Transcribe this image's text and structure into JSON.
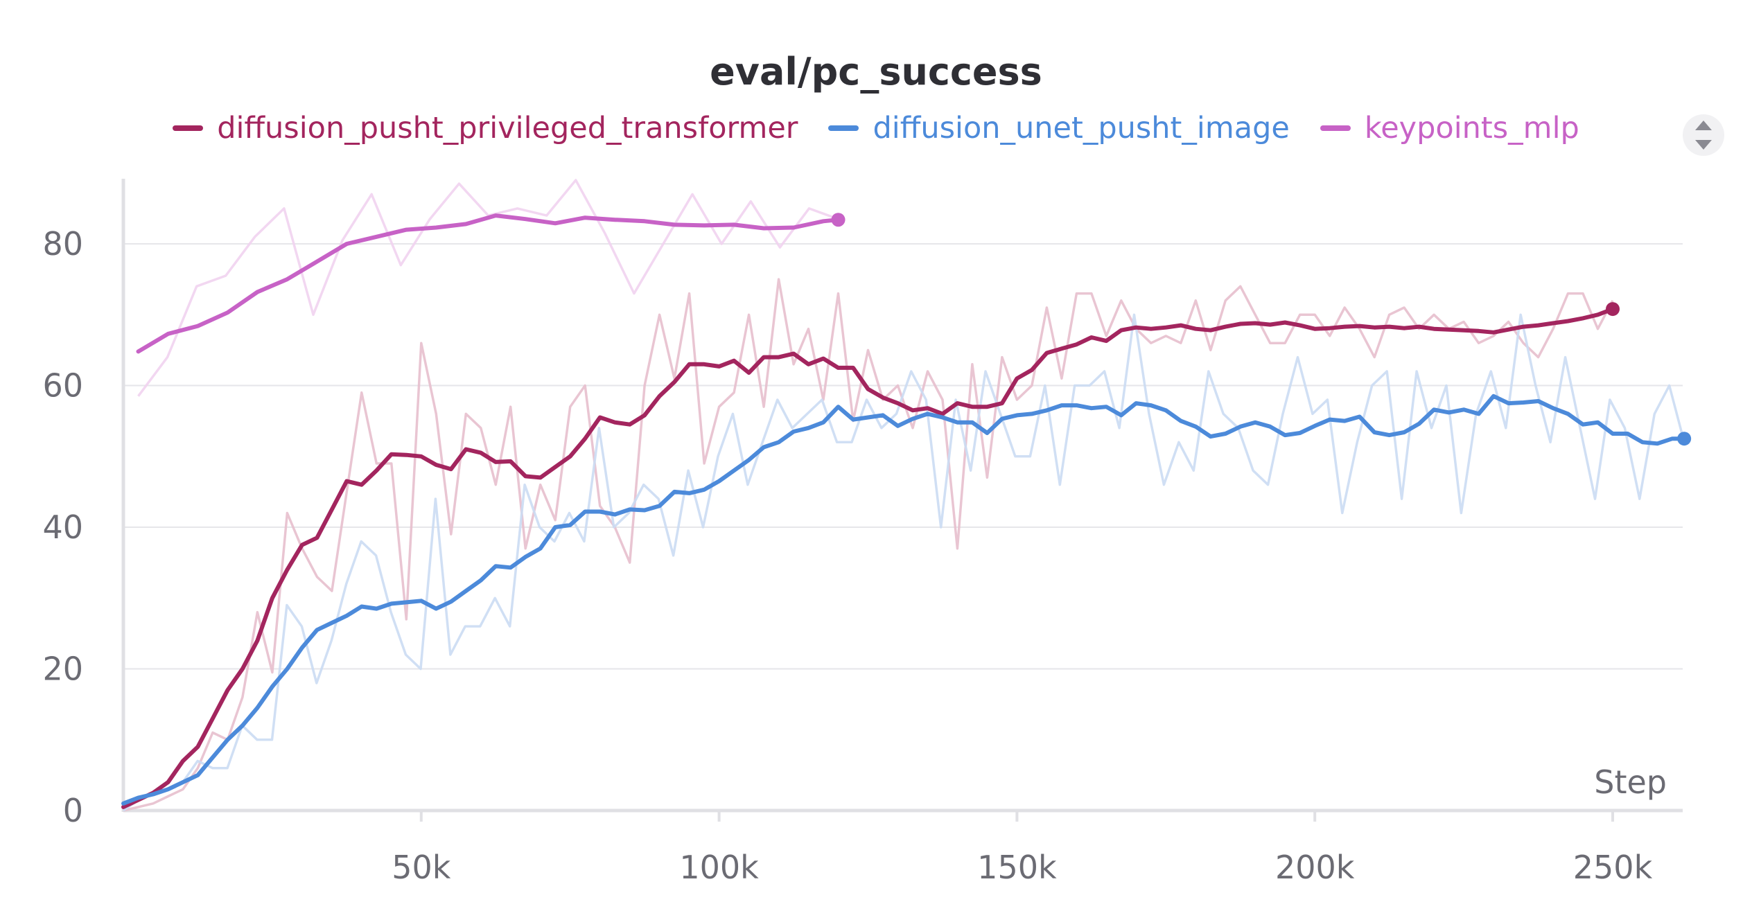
{
  "chart_data": {
    "type": "line",
    "title": "eval/pc_success",
    "xlabel": "Step",
    "ylabel": "",
    "xlim": [
      0,
      262000
    ],
    "ylim": [
      0,
      90
    ],
    "x_ticks": [
      50000,
      100000,
      150000,
      200000,
      250000
    ],
    "x_tick_labels": [
      "50k",
      "100k",
      "150k",
      "200k",
      "250k"
    ],
    "y_ticks": [
      0,
      20,
      40,
      60,
      80
    ],
    "y_tick_labels": [
      "0",
      "20",
      "40",
      "60",
      "80"
    ],
    "grid": true,
    "legend_position": "top-center",
    "series": [
      {
        "name": "diffusion_pusht_privileged_transformer",
        "color": "#a3255e",
        "raw_color": "#e7bfcd",
        "x": [
          0,
          2500,
          5000,
          7500,
          10000,
          12500,
          15000,
          17500,
          20000,
          22500,
          25000,
          27500,
          30000,
          32500,
          35000,
          37500,
          40000,
          42500,
          45000,
          47500,
          50000,
          52500,
          55000,
          57500,
          60000,
          62500,
          65000,
          67500,
          70000,
          72500,
          75000,
          77500,
          80000,
          82500,
          85000,
          87500,
          90000,
          92500,
          95000,
          97500,
          100000,
          102500,
          105000,
          107500,
          110000,
          112500,
          115000,
          117500,
          120000,
          122500,
          125000,
          127500,
          130000,
          132500,
          135000,
          137500,
          140000,
          142500,
          145000,
          147500,
          150000,
          152500,
          155000,
          157500,
          160000,
          162500,
          165000,
          167500,
          170000,
          172500,
          175000,
          177500,
          180000,
          182500,
          185000,
          187500,
          190000,
          192500,
          195000,
          197500,
          200000,
          202500,
          205000,
          207500,
          210000,
          212500,
          215000,
          217500,
          220000,
          222500,
          225000,
          227500,
          230000,
          232500,
          235000,
          237500,
          240000,
          242500,
          245000,
          247500,
          250000
        ],
        "values": [
          0.5,
          1.5,
          2.5,
          4,
          7,
          9,
          13,
          17,
          20,
          24,
          30,
          34,
          37.5,
          38.5,
          42.5,
          46.5,
          46,
          48,
          50.3,
          50.2,
          50,
          48.8,
          48.2,
          51,
          50.5,
          49.2,
          49.3,
          47.2,
          47,
          48.5,
          50,
          52.5,
          55.5,
          54.8,
          54.5,
          55.8,
          58.5,
          60.5,
          63,
          63,
          62.7,
          63.5,
          61.8,
          64,
          64,
          64.5,
          63,
          63.8,
          62.5,
          62.5,
          59.5,
          58.3,
          57.5,
          56.5,
          56.8,
          56,
          57.5,
          57,
          57,
          57.5,
          61,
          62.2,
          64.6,
          65.2,
          65.8,
          66.8,
          66.3,
          67.8,
          68.2,
          68.0,
          68.2,
          68.5,
          68.0,
          67.8,
          68.3,
          68.7,
          68.8,
          68.6,
          68.9,
          68.5,
          68.0,
          68.1,
          68.3,
          68.4,
          68.2,
          68.3,
          68.1,
          68.3,
          68.0,
          67.9,
          67.8,
          67.7,
          67.5,
          67.9,
          68.3,
          68.5,
          68.8,
          69.1,
          69.5,
          70,
          70.8
        ],
        "raw_values": [
          0,
          0.5,
          1,
          2,
          3,
          6,
          11,
          10,
          16,
          28,
          19.5,
          42,
          37,
          33,
          31,
          45,
          59,
          49,
          49,
          27,
          66,
          56,
          39,
          56,
          54,
          46,
          57,
          37,
          46,
          41,
          57,
          60,
          43,
          40,
          35,
          60,
          70,
          61,
          73,
          49,
          57,
          59,
          70,
          57,
          75,
          63,
          68,
          58,
          73,
          55,
          65,
          58,
          60,
          54,
          62,
          58,
          37,
          63,
          47,
          64,
          58,
          60,
          71,
          61,
          73,
          73,
          67,
          72,
          68,
          66,
          67,
          66,
          72,
          65,
          72,
          74,
          70,
          66,
          66,
          70,
          70,
          67,
          71,
          68,
          64,
          70,
          71,
          68,
          70,
          68,
          69,
          66,
          67,
          69,
          66,
          64,
          68,
          73,
          73,
          68,
          72
        ]
      },
      {
        "name": "diffusion_unet_pusht_image",
        "color": "#4c8ada",
        "raw_color": "#cbdcf3",
        "x": [
          0,
          2500,
          5000,
          7500,
          10000,
          12500,
          15000,
          17500,
          20000,
          22500,
          25000,
          27500,
          30000,
          32500,
          35000,
          37500,
          40000,
          42500,
          45000,
          47500,
          50000,
          52500,
          55000,
          57500,
          60000,
          62500,
          65000,
          67500,
          70000,
          72500,
          75000,
          77500,
          80000,
          82500,
          85000,
          87500,
          90000,
          92500,
          95000,
          97500,
          100000,
          102500,
          105000,
          107500,
          110000,
          112500,
          115000,
          117500,
          120000,
          122500,
          125000,
          127500,
          130000,
          132500,
          135000,
          137500,
          140000,
          142500,
          145000,
          147500,
          150000,
          152500,
          155000,
          157500,
          160000,
          162500,
          165000,
          167500,
          170000,
          172500,
          175000,
          177500,
          180000,
          182500,
          185000,
          187500,
          190000,
          192500,
          195000,
          197500,
          200000,
          202500,
          205000,
          207500,
          210000,
          212500,
          215000,
          217500,
          220000,
          222500,
          225000,
          227500,
          230000,
          232500,
          235000,
          237500,
          240000,
          242500,
          245000,
          247500,
          250000,
          252500,
          255000,
          257500,
          260000,
          262000
        ],
        "values": [
          1,
          1.8,
          2.3,
          3,
          4,
          5,
          7.5,
          10,
          12,
          14.5,
          17.5,
          20,
          23,
          25.5,
          26.5,
          27.5,
          28.8,
          28.5,
          29.2,
          29.4,
          29.6,
          28.5,
          29.5,
          31,
          32.5,
          34.5,
          34.3,
          35.8,
          37,
          40,
          40.3,
          42.2,
          42.2,
          41.8,
          42.5,
          42.4,
          43,
          45,
          44.8,
          45.3,
          46.5,
          48,
          49.5,
          51.3,
          52,
          53.5,
          54,
          54.8,
          57,
          55.2,
          55.5,
          55.8,
          54.3,
          55.3,
          56,
          55.5,
          54.8,
          54.8,
          53.3,
          55.3,
          55.8,
          56,
          56.5,
          57.2,
          57.2,
          56.8,
          57,
          55.8,
          57.5,
          57.2,
          56.5,
          55,
          54.2,
          52.8,
          53.2,
          54.2,
          54.8,
          54.2,
          53,
          53.3,
          54.3,
          55.2,
          55,
          55.6,
          53.4,
          53,
          53.4,
          54.6,
          56.6,
          56.2,
          56.6,
          56,
          58.5,
          57.5,
          57.6,
          57.8,
          56.8,
          56,
          54.5,
          54.8,
          53.2,
          53.2,
          52,
          51.8,
          52.5,
          52.5
        ],
        "raw_values": [
          0,
          1.5,
          2.5,
          3,
          4,
          7,
          6,
          6,
          12,
          10,
          10,
          29,
          26,
          18,
          24,
          32,
          38,
          36,
          28,
          22,
          20,
          44,
          22,
          26,
          26,
          30,
          26,
          46,
          40,
          38,
          42,
          38,
          54,
          40,
          42,
          46,
          44,
          36,
          48,
          40,
          50,
          56,
          46,
          52,
          58,
          54,
          56,
          58,
          52,
          52,
          58,
          54,
          56,
          62,
          58,
          40,
          58,
          48,
          62,
          56,
          50,
          50,
          60,
          46,
          60,
          60,
          62,
          54,
          70,
          56,
          46,
          52,
          48,
          62,
          56,
          54,
          48,
          46,
          56,
          64,
          56,
          58,
          42,
          52,
          60,
          62,
          44,
          62,
          54,
          60,
          42,
          56,
          62,
          54,
          70,
          60,
          52,
          64,
          54,
          44,
          58,
          54,
          44,
          56,
          60,
          52
        ]
      },
      {
        "name": "keypoints_mlp",
        "color": "#c762c6",
        "raw_color": "#f1d3f0",
        "x": [
          2500,
          7500,
          12500,
          17500,
          22500,
          27500,
          32500,
          37500,
          42500,
          47500,
          52500,
          57500,
          62500,
          67500,
          72500,
          77500,
          82500,
          87500,
          92500,
          97500,
          102500,
          107500,
          112500,
          117500,
          120000
        ],
        "values": [
          64.8,
          67.3,
          68.4,
          70.3,
          73.2,
          75.0,
          77.5,
          80.0,
          81.0,
          82.0,
          82.3,
          82.8,
          84.0,
          83.5,
          82.9,
          83.7,
          83.4,
          83.2,
          82.7,
          82.6,
          82.7,
          82.2,
          82.3,
          83.2,
          83.4
        ],
        "raw_values": [
          58.5,
          64,
          74,
          75.5,
          81,
          85,
          70,
          80.5,
          87,
          77,
          83.5,
          88.5,
          84,
          85,
          84,
          89,
          81.5,
          73,
          80,
          87,
          80,
          86,
          79.5,
          85,
          83.5
        ]
      }
    ]
  }
}
